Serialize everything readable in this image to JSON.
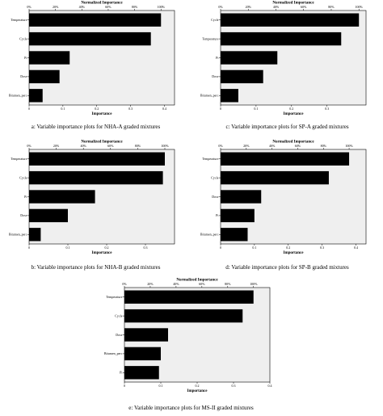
{
  "chart_data": [
    {
      "type": "bar",
      "orientation": "horizontal",
      "categories": [
        "Temperature",
        "Cycle",
        "Pi",
        "Dose",
        "Bitumen_perc"
      ],
      "values": [
        0.39,
        0.36,
        0.12,
        0.09,
        0.04
      ],
      "top_axis_label": "Normalized Importance",
      "top_ticks": [
        "0%",
        "20%",
        "40%",
        "60%",
        "80%",
        "100%"
      ],
      "xlabel": "Importance",
      "xticks": [
        "0",
        "0.1",
        "0.2",
        "0.3",
        "0.4"
      ],
      "xlim": [
        0,
        0.43
      ],
      "caption": "a: Variable importance plots for NHA-A graded mixtures"
    },
    {
      "type": "bar",
      "orientation": "horizontal",
      "categories": [
        "Cycle",
        "Temperature",
        "Pi",
        "Dose",
        "Bitumen_perc"
      ],
      "values": [
        0.39,
        0.34,
        0.16,
        0.12,
        0.05
      ],
      "top_axis_label": "Normalized Importance",
      "top_ticks": [
        "0%",
        "20%",
        "40%",
        "60%",
        "80%",
        "100%"
      ],
      "xlabel": "Importance",
      "xticks": [
        "0",
        "0.1",
        "0.2",
        "0.3"
      ],
      "xlim": [
        0,
        0.41
      ],
      "caption": "c: Variable importance plots for SP-A graded mixtures"
    },
    {
      "type": "bar",
      "orientation": "horizontal",
      "categories": [
        "Temperature",
        "Cycle",
        "Pi",
        "Dose",
        "Bitumen_perc"
      ],
      "values": [
        0.35,
        0.345,
        0.17,
        0.1,
        0.03
      ],
      "top_axis_label": "Normalized Importance",
      "top_ticks": [
        "0%",
        "20%",
        "40%",
        "60%",
        "80%",
        "100%"
      ],
      "xlabel": "Importance",
      "xticks": [
        "0",
        "0.1",
        "0.2",
        "0.3"
      ],
      "xlim": [
        0,
        0.375
      ],
      "caption": "b: Variable importance plots for NHA-B graded mixtures"
    },
    {
      "type": "bar",
      "orientation": "horizontal",
      "categories": [
        "Temperature",
        "Cycle",
        "Dose",
        "Pi",
        "Bitumen_perc"
      ],
      "values": [
        0.38,
        0.32,
        0.12,
        0.1,
        0.08
      ],
      "top_axis_label": "Normalized Importance",
      "top_ticks": [
        "0%",
        "20%",
        "40%",
        "60%",
        "80%",
        "100%"
      ],
      "xlabel": "Importance",
      "xticks": [
        "0",
        "0.1",
        "0.2",
        "0.3",
        "0.4"
      ],
      "xlim": [
        0,
        0.43
      ],
      "caption": "d: Variable importance plots for SP-B graded mixtures"
    },
    {
      "type": "bar",
      "orientation": "horizontal",
      "categories": [
        "Temperature",
        "Cycle",
        "Dose",
        "Bitumen_perc",
        "Pi"
      ],
      "values": [
        0.355,
        0.325,
        0.12,
        0.1,
        0.095
      ],
      "top_axis_label": "Normalized Importance",
      "top_ticks": [
        "0%",
        "20%",
        "40%",
        "60%",
        "80%",
        "100%"
      ],
      "xlabel": "Importance",
      "xticks": [
        "0",
        "0.1",
        "0.2",
        "0.3",
        "0.4"
      ],
      "xlim": [
        0,
        0.4
      ],
      "caption": "e: Variable importance plots for MS-II graded mixtures"
    }
  ]
}
